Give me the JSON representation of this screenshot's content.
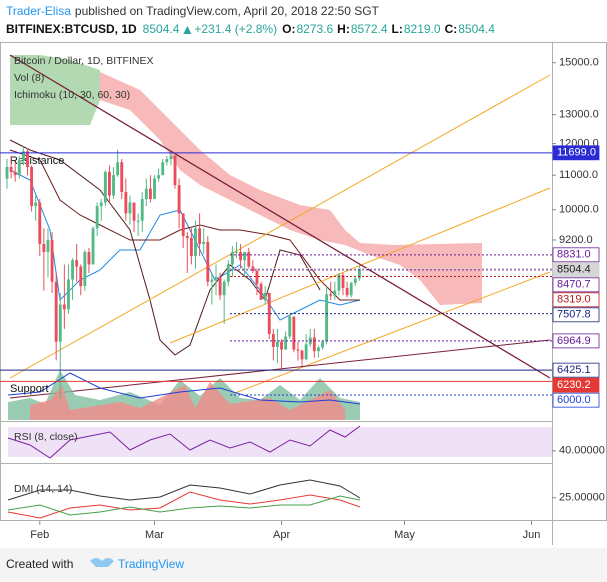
{
  "header": {
    "author": "Trader-Elisa",
    "published": "published on TradingView.com, April 20, 2018 22:50 SGT",
    "symbol": "BITFINEX:BTCUSD, 1D",
    "price": "8504.4",
    "change": "+231.4 (+2.8%)",
    "ohlc": [
      {
        "key": "O:",
        "value": "8273.6"
      },
      {
        "key": "H:",
        "value": "8572.4"
      },
      {
        "key": "L:",
        "value": "8219.0"
      },
      {
        "key": "C:",
        "value": "8504.4"
      }
    ]
  },
  "chart_data": {
    "type": "candlestick",
    "title": "Bitcoin / Dollar, 1D, BITFINEX",
    "log_scale": true,
    "grid": false,
    "up_color": "#53b987",
    "down_color": "#eb4d5c",
    "x": [
      0,
      1,
      2,
      3,
      4,
      5,
      6,
      7,
      8,
      9,
      10,
      11,
      12,
      13,
      14,
      15,
      16,
      17,
      18,
      19,
      20,
      21,
      22,
      23,
      24,
      25,
      26,
      27,
      28,
      29,
      30,
      31,
      32,
      33,
      34,
      35,
      36,
      37,
      38,
      39,
      40,
      41,
      42,
      43,
      44,
      45,
      46,
      47,
      48,
      49,
      50,
      51,
      52,
      53,
      54,
      55,
      56,
      57,
      58,
      59,
      60,
      61,
      62,
      63,
      64,
      65,
      66,
      67,
      68,
      69,
      70,
      71,
      72,
      73,
      74,
      75,
      76,
      77,
      78,
      79,
      80,
      81,
      82,
      83,
      84,
      85,
      86
    ],
    "open": [
      10900,
      11250,
      11100,
      11000,
      11450,
      11750,
      11250,
      10100,
      10200,
      9100,
      8900,
      9200,
      8200,
      6950,
      7700,
      7600,
      8250,
      8700,
      8550,
      8100,
      8900,
      8600,
      9500,
      10100,
      10200,
      11100,
      10400,
      11000,
      11400,
      10500,
      9900,
      10200,
      9700,
      9700,
      10300,
      10600,
      10300,
      10900,
      11000,
      11400,
      11500,
      11600,
      10700,
      9900,
      9300,
      9250,
      8800,
      9500,
      9100,
      9150,
      8200,
      8250,
      8300,
      7900,
      8200,
      8600,
      8900,
      8900,
      8700,
      8900,
      8550,
      8450,
      8150,
      7800,
      7950,
      7100,
      6850,
      6950,
      6800,
      7050,
      7450,
      6800,
      6780,
      6620,
      6900,
      7030,
      6770,
      6840,
      6950,
      7920,
      7890,
      8000,
      8350,
      8060,
      7900,
      8170,
      8273.6
    ],
    "high": [
      11500,
      11600,
      11400,
      11600,
      11900,
      11850,
      11300,
      10400,
      10300,
      9500,
      9500,
      9400,
      8400,
      7950,
      8600,
      8600,
      8750,
      9100,
      8600,
      8950,
      9000,
      9550,
      10200,
      10300,
      11150,
      11300,
      11250,
      11800,
      11500,
      10900,
      10400,
      10200,
      9900,
      10500,
      10900,
      11000,
      11000,
      11200,
      11500,
      11600,
      11700,
      11700,
      10900,
      9900,
      9400,
      9500,
      9700,
      9900,
      9500,
      9300,
      8400,
      8600,
      8400,
      8250,
      8700,
      9050,
      9150,
      9100,
      8900,
      9000,
      8700,
      8500,
      8200,
      8100,
      7950,
      7200,
      7200,
      7000,
      7150,
      7500,
      7450,
      6950,
      6800,
      7100,
      7200,
      7200,
      6880,
      6980,
      8100,
      8200,
      8200,
      8400,
      8400,
      8200,
      8200,
      8300,
      8572.4
    ],
    "low": [
      10600,
      10900,
      10800,
      10900,
      11300,
      11000,
      9950,
      9700,
      8800,
      8000,
      8300,
      7950,
      6600,
      5950,
      7200,
      7500,
      7800,
      8200,
      7900,
      8000,
      8400,
      8600,
      9300,
      9700,
      10100,
      10200,
      10300,
      10950,
      10300,
      9700,
      9600,
      9400,
      9300,
      9400,
      10100,
      10200,
      10300,
      10800,
      11000,
      11300,
      11300,
      10600,
      9500,
      9000,
      8400,
      8600,
      8500,
      8800,
      8850,
      8100,
      7700,
      7900,
      7800,
      7300,
      8100,
      8300,
      8750,
      8500,
      8300,
      8500,
      8400,
      7900,
      7800,
      7700,
      7000,
      6600,
      6550,
      6450,
      6800,
      7000,
      6750,
      6600,
      6500,
      6600,
      6850,
      6650,
      6650,
      6800,
      6900,
      7800,
      7800,
      7900,
      7900,
      7850,
      7850,
      8100,
      8219
    ],
    "close": [
      11250,
      11100,
      11000,
      11450,
      11750,
      11250,
      10100,
      10200,
      9100,
      8900,
      9200,
      8200,
      6950,
      7700,
      7600,
      8250,
      8700,
      8550,
      8100,
      8900,
      8600,
      9500,
      10100,
      10200,
      11100,
      10400,
      11000,
      11400,
      10500,
      9900,
      10200,
      9700,
      9700,
      10300,
      10600,
      10300,
      10900,
      11000,
      11400,
      11500,
      11600,
      10700,
      9900,
      9300,
      9250,
      8800,
      9500,
      9100,
      9150,
      8200,
      8250,
      8300,
      7900,
      8200,
      8600,
      8900,
      8900,
      8700,
      8900,
      8550,
      8450,
      8150,
      7800,
      7950,
      7100,
      6850,
      6950,
      6800,
      7050,
      7450,
      6800,
      6780,
      6620,
      6900,
      7030,
      6770,
      6840,
      6950,
      7920,
      7890,
      8000,
      8350,
      8060,
      7900,
      8170,
      8273.6,
      8504.4
    ],
    "xlim": [
      0,
      133
    ],
    "xticks": [
      {
        "value": 8,
        "label": "Feb"
      },
      {
        "value": 36,
        "label": "Mar"
      },
      {
        "value": 67,
        "label": "Apr"
      },
      {
        "value": 97,
        "label": "May"
      },
      {
        "value": 128,
        "label": "Jun"
      }
    ],
    "ylim": [
      5600,
      15750
    ],
    "yticks": [
      {
        "value": 15000,
        "label": "15000.0"
      },
      {
        "value": 13000,
        "label": "13000.0"
      },
      {
        "value": 12000,
        "label": "12000.0"
      },
      {
        "value": 11000,
        "label": "11000.0"
      },
      {
        "value": 10000,
        "label": "10000.0"
      },
      {
        "value": 9200,
        "label": "9200.0"
      }
    ],
    "levels": [
      {
        "value": 11699,
        "label": "11699.0",
        "bg": "#2b2bd6",
        "fg": "#ffffff",
        "style": "solid"
      },
      {
        "value": 8831,
        "label": "8831.0",
        "bg": "#ffffff",
        "fg": "#6a1b9a",
        "style": "dotted"
      },
      {
        "value": 8504.4,
        "label": "8504.4",
        "bg": "#d6d6d6",
        "fg": "#222222",
        "style": "dotted"
      },
      {
        "value": 8470.7,
        "label": "8470.7",
        "bg": "#ffffff",
        "fg": "#6a1b9a",
        "style": "dotted"
      },
      {
        "value": 8319,
        "label": "8319.0",
        "bg": "#ffffff",
        "fg": "#b71c1c",
        "style": "dotted"
      },
      {
        "value": 7507.8,
        "label": "7507.8",
        "bg": "#ffffff",
        "fg": "#1a237e",
        "style": "dotted"
      },
      {
        "value": 6964.9,
        "label": "6964.9",
        "bg": "#ffffff",
        "fg": "#6a1b9a",
        "style": "dotted"
      },
      {
        "value": 6425.1,
        "label": "6425.1",
        "bg": "#ffffff",
        "fg": "#1a237e",
        "style": "solid"
      },
      {
        "value": 6230.2,
        "label": "6230.2",
        "bg": "#e53935",
        "fg": "#ffffff",
        "style": "solid"
      },
      {
        "value": 6000,
        "label": "6000.0",
        "bg": "#ffffff",
        "fg": "#1f3fd6",
        "style": "dotted"
      }
    ]
  },
  "panes": {
    "volume": "Vol (8)",
    "ichimoku": "Ichimoku (10, 30, 60, 30)",
    "resistance": "Resistance",
    "support": "Support",
    "rsi": {
      "label": "RSI (8, close)",
      "ylim": [
        25,
        85
      ],
      "yticks": [
        {
          "value": 40,
          "label": "40.00000"
        }
      ]
    },
    "dmi": {
      "label": "DMI (14, 14)",
      "ylim": [
        5,
        50
      ],
      "yticks": [
        {
          "value": 25,
          "label": "25.00000"
        }
      ]
    }
  },
  "footer": {
    "created": "Created with",
    "brand": "TradingView"
  }
}
